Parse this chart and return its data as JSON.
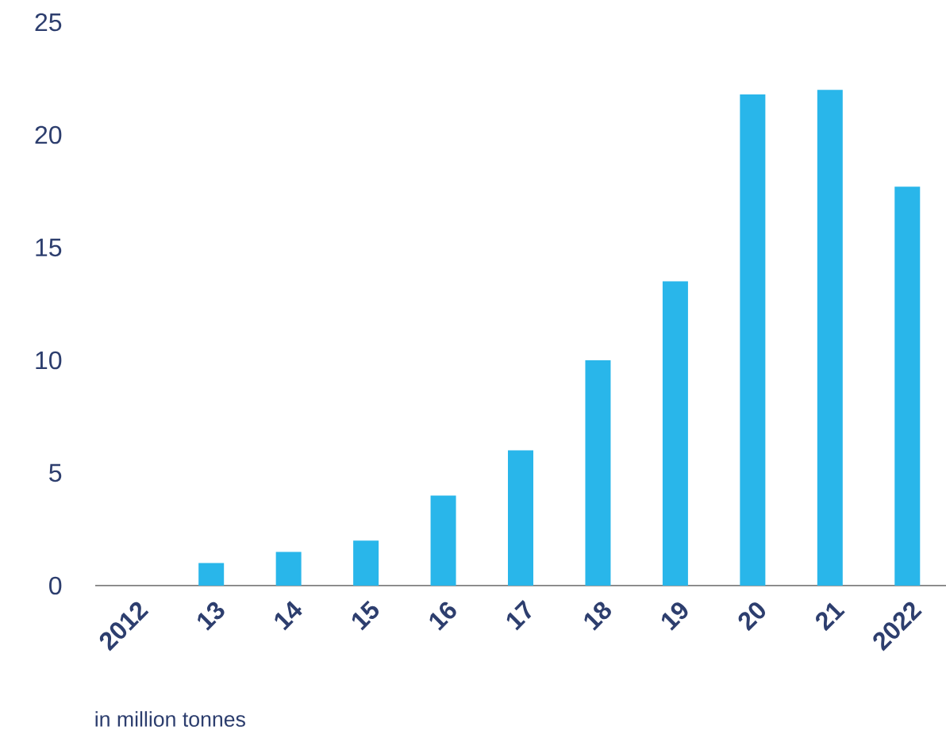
{
  "chart_data": {
    "type": "bar",
    "categories": [
      "2012",
      "13",
      "14",
      "15",
      "16",
      "17",
      "18",
      "19",
      "20",
      "21",
      "2022"
    ],
    "values": [
      0,
      1,
      1.5,
      2,
      4,
      6,
      10,
      13.5,
      21.8,
      22,
      17.7
    ],
    "color": "#29b6ea",
    "ylim": [
      0,
      25
    ],
    "yticks": [
      0,
      5,
      10,
      15,
      20,
      25
    ],
    "annotations": [
      "in million tonnes"
    ]
  }
}
